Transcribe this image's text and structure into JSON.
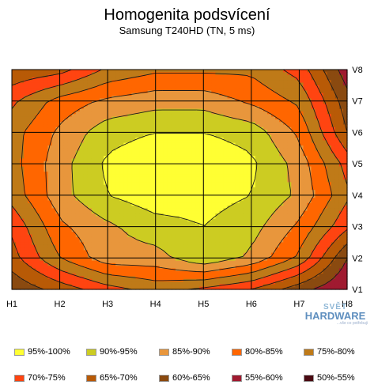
{
  "title": "Homogenita podsvícení",
  "subtitle": "Samsung T240HD (TN, 5 ms)",
  "watermark": {
    "line1": "SVĚT",
    "line2": "HARDWARE",
    "line3": "...vše co potřebuji"
  },
  "chart_data": {
    "type": "contour",
    "title": "Homogenita podsvícení",
    "subtitle": "Samsung T240HD (TN, 5 ms)",
    "x_ticks": [
      "H1",
      "H2",
      "H3",
      "H4",
      "H5",
      "H6",
      "H7",
      "H8"
    ],
    "y_ticks": [
      "V1",
      "V2",
      "V3",
      "V4",
      "V5",
      "V6",
      "V7",
      "V8"
    ],
    "grid": true,
    "legend_position": "bottom",
    "unit": "%",
    "values_by_row_V8_to_V1": [
      [
        66,
        68,
        76,
        79,
        79,
        79,
        73,
        57
      ],
      [
        74,
        82,
        86,
        88,
        88,
        84,
        79,
        62
      ],
      [
        78,
        86,
        93,
        95,
        95,
        93,
        84,
        65
      ],
      [
        78,
        88,
        96,
        99,
        99,
        96,
        88,
        73
      ],
      [
        77,
        88,
        95,
        98,
        97,
        95,
        89,
        76
      ],
      [
        71,
        84,
        89,
        93,
        95,
        92,
        84,
        71
      ],
      [
        68,
        80,
        88,
        88,
        94,
        89,
        79,
        60
      ],
      [
        61,
        67,
        73,
        77,
        74,
        70,
        62,
        55
      ]
    ],
    "legend": [
      {
        "label": "95%-100%",
        "color": "#ffff33"
      },
      {
        "label": "90%-95%",
        "color": "#cccc22"
      },
      {
        "label": "85%-90%",
        "color": "#e8963c"
      },
      {
        "label": "80%-85%",
        "color": "#ff6600"
      },
      {
        "label": "75%-80%",
        "color": "#bf7a18"
      },
      {
        "label": "70%-75%",
        "color": "#ff4411"
      },
      {
        "label": "65%-70%",
        "color": "#b85a06"
      },
      {
        "label": "60%-65%",
        "color": "#8a4a10"
      },
      {
        "label": "55%-60%",
        "color": "#a01a30"
      },
      {
        "label": "50%-55%",
        "color": "#4a0a12"
      }
    ]
  }
}
